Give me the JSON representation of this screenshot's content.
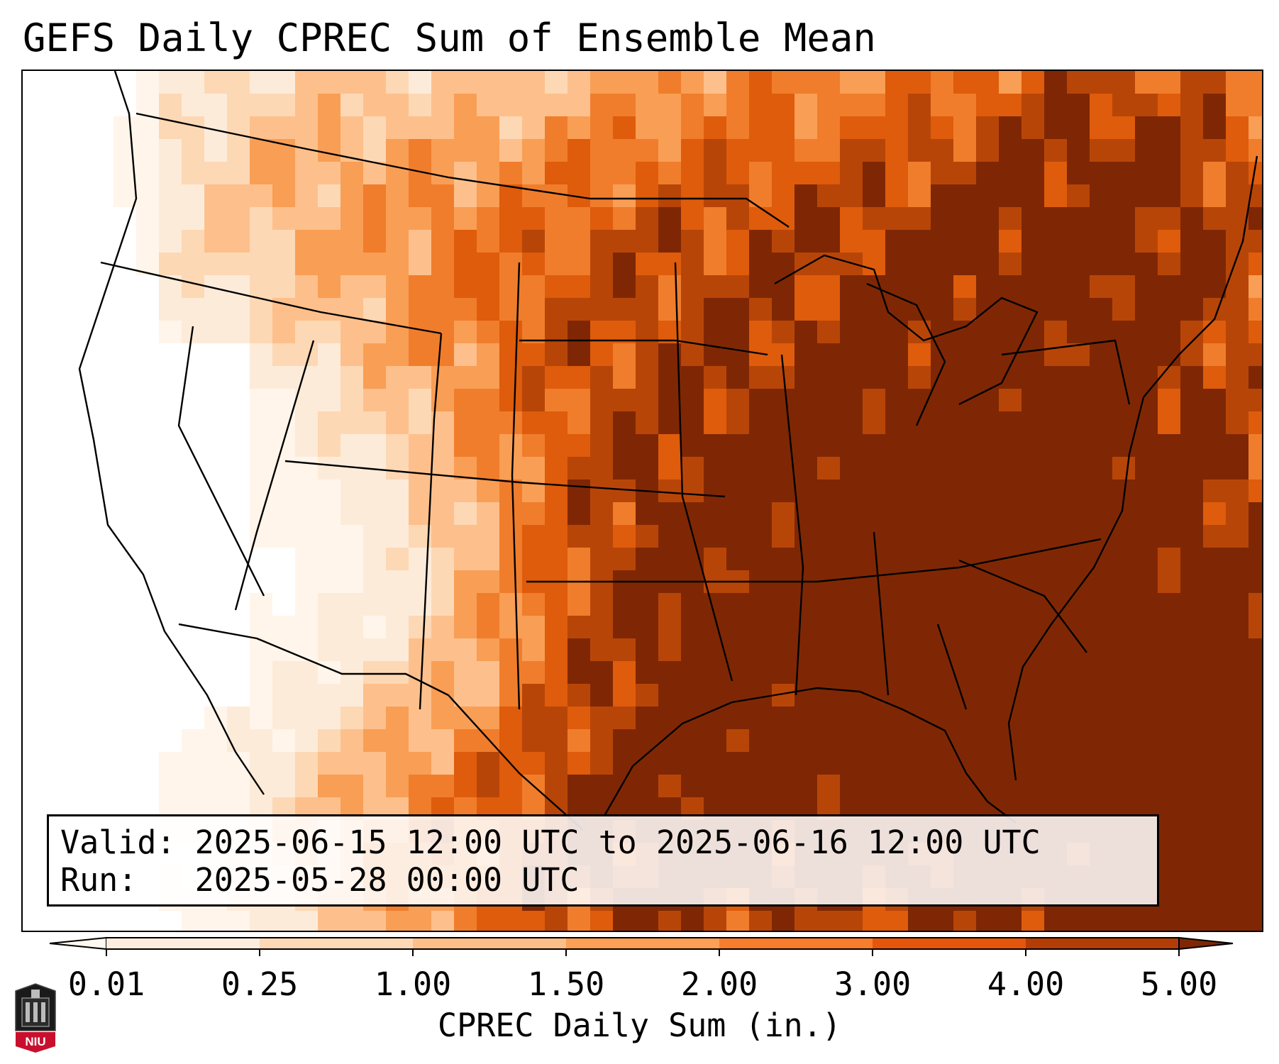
{
  "title": "GEFS Daily CPREC Sum of Ensemble Mean",
  "info": {
    "valid_label": "Valid:",
    "valid_value": "2025-06-15 12:00 UTC to 2025-06-16 12:00 UTC",
    "run_label": "Run:",
    "run_value": "2025-05-28 00:00 UTC"
  },
  "colorbar": {
    "label": "CPREC Daily Sum (in.)",
    "ticks": [
      "0.01",
      "0.25",
      "1.00",
      "1.50",
      "2.00",
      "3.00",
      "4.00",
      "5.00"
    ],
    "tick_values": [
      0.01,
      0.25,
      1.0,
      1.5,
      2.0,
      3.0,
      4.0,
      5.0
    ],
    "colors": [
      "#fdeee0",
      "#fdd9b6",
      "#fdbf89",
      "#fd9f55",
      "#f87d2d",
      "#e5560b",
      "#b43c05"
    ],
    "under_color": "#fff8f0",
    "over_color": "#7f2704",
    "extend": "both"
  },
  "map": {
    "region": "Continental United States",
    "field": "GEFS ensemble mean convective precipitation daily sum",
    "precip_colors": [
      "#ffffff",
      "#fff5eb",
      "#fdebd9",
      "#fdd8b5",
      "#fdc08c",
      "#f99e55",
      "#f07d2c",
      "#de5c0b",
      "#b84508",
      "#7f2704"
    ]
  },
  "logo": {
    "text": "NIU",
    "color": "#c8102e"
  }
}
